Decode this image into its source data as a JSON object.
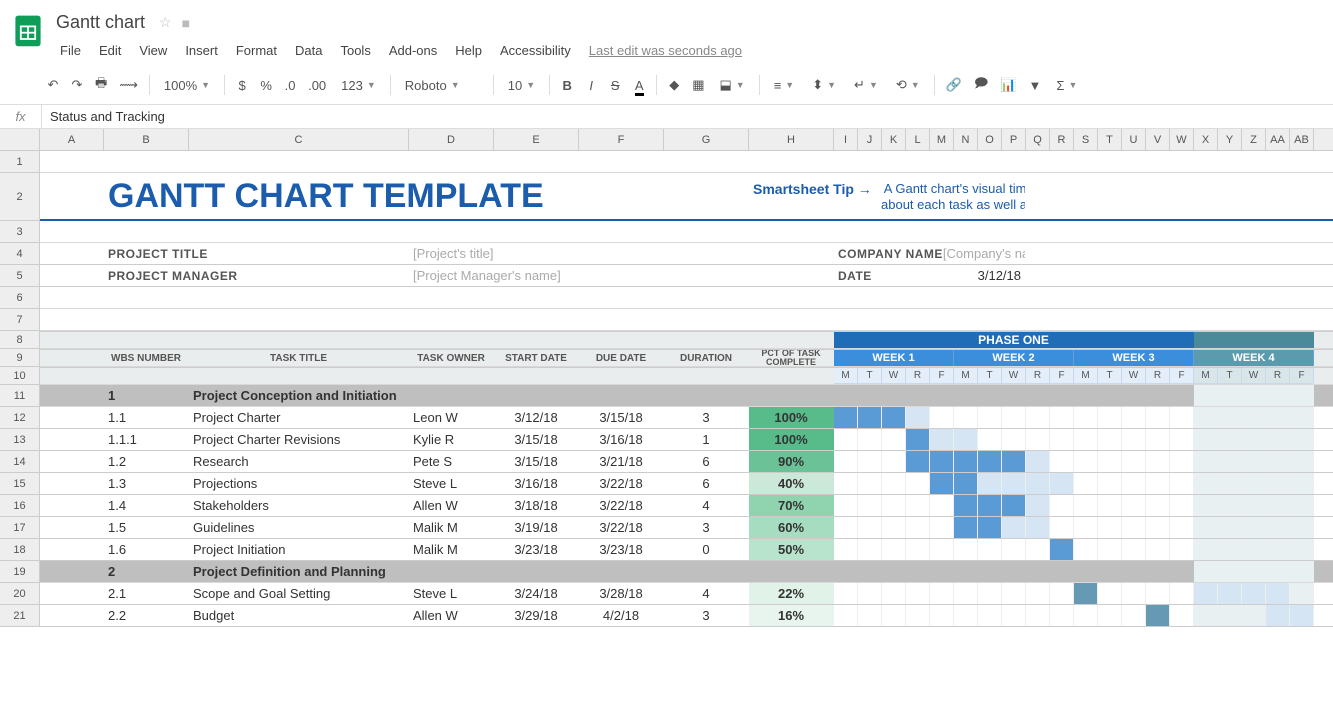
{
  "doc": {
    "title": "Gantt chart",
    "last_edit": "Last edit was seconds ago"
  },
  "menus": [
    "File",
    "Edit",
    "View",
    "Insert",
    "Format",
    "Data",
    "Tools",
    "Add-ons",
    "Help",
    "Accessibility"
  ],
  "toolbar": {
    "zoom": "100%",
    "font": "Roboto",
    "fontsize": "10",
    "numfmt": "123"
  },
  "formula": {
    "value": "Status and Tracking"
  },
  "columns": {
    "letters": [
      "A",
      "B",
      "C",
      "D",
      "E",
      "F",
      "G",
      "H",
      "I",
      "J",
      "K",
      "L",
      "M",
      "N",
      "O",
      "P",
      "Q",
      "R",
      "S",
      "T",
      "U",
      "V",
      "W",
      "X",
      "Y",
      "Z",
      "AA",
      "AB"
    ],
    "widths": [
      64,
      85,
      220,
      85,
      85,
      85,
      85,
      85,
      24,
      24,
      24,
      24,
      24,
      24,
      24,
      24,
      24,
      24,
      24,
      24,
      24,
      24,
      24,
      24,
      24,
      24,
      24,
      24
    ]
  },
  "rows": [
    "1",
    "2",
    "3",
    "4",
    "5",
    "6",
    "7",
    "8",
    "9",
    "10",
    "11",
    "12",
    "13",
    "14",
    "15",
    "16",
    "17",
    "18",
    "19",
    "20",
    "21"
  ],
  "content": {
    "title": "GANTT CHART TEMPLATE",
    "tip_label": "Smartsheet Tip →",
    "tip_text1": "A Gantt chart's visual timeline allows you to see",
    "tip_text2": "about each task as well as project dependencies",
    "fields": {
      "project_title_label": "PROJECT TITLE",
      "project_title_val": "[Project's title]",
      "project_manager_label": "PROJECT MANAGER",
      "project_manager_val": "[Project Manager's name]",
      "company_label": "COMPANY NAME",
      "company_val": "[Company's name]",
      "date_label": "DATE",
      "date_val": "3/12/18"
    },
    "headers": {
      "wbs": "WBS NUMBER",
      "title": "TASK TITLE",
      "owner": "TASK OWNER",
      "start": "START DATE",
      "due": "DUE DATE",
      "duration": "DURATION",
      "pct": "PCT OF TASK COMPLETE",
      "phase": "PHASE ONE",
      "weeks": [
        "WEEK 1",
        "WEEK 2",
        "WEEK 3",
        "WEEK 4"
      ],
      "days": [
        "M",
        "T",
        "W",
        "R",
        "F"
      ]
    },
    "sections": [
      {
        "num": "1",
        "title": "Project Conception and Initiation"
      },
      {
        "num": "2",
        "title": "Project Definition and Planning"
      }
    ],
    "tasks": [
      {
        "wbs": "1.1",
        "title": "Project Charter",
        "owner": "Leon W",
        "start": "3/12/18",
        "due": "3/15/18",
        "dur": "3",
        "pct": "100%",
        "pctcolor": "#57bb8a",
        "bars": [
          [
            0,
            3,
            "bar-blue"
          ],
          [
            3,
            1,
            "bar-light"
          ]
        ]
      },
      {
        "wbs": "1.1.1",
        "title": "Project Charter Revisions",
        "owner": "Kylie R",
        "start": "3/15/18",
        "due": "3/16/18",
        "dur": "1",
        "pct": "100%",
        "pctcolor": "#57bb8a",
        "bars": [
          [
            3,
            1,
            "bar-blue"
          ],
          [
            4,
            2,
            "bar-light"
          ]
        ]
      },
      {
        "wbs": "1.2",
        "title": "Research",
        "owner": "Pete S",
        "start": "3/15/18",
        "due": "3/21/18",
        "dur": "6",
        "pct": "90%",
        "pctcolor": "#6bc297",
        "bars": [
          [
            3,
            5,
            "bar-blue"
          ],
          [
            8,
            1,
            "bar-light"
          ]
        ]
      },
      {
        "wbs": "1.3",
        "title": "Projections",
        "owner": "Steve L",
        "start": "3/16/18",
        "due": "3/22/18",
        "dur": "6",
        "pct": "40%",
        "pctcolor": "#cce8d9",
        "bars": [
          [
            4,
            2,
            "bar-blue"
          ],
          [
            6,
            4,
            "bar-light"
          ]
        ]
      },
      {
        "wbs": "1.4",
        "title": "Stakeholders",
        "owner": "Allen W",
        "start": "3/18/18",
        "due": "3/22/18",
        "dur": "4",
        "pct": "70%",
        "pctcolor": "#8fd3af",
        "bars": [
          [
            5,
            3,
            "bar-blue"
          ],
          [
            8,
            1,
            "bar-light"
          ]
        ]
      },
      {
        "wbs": "1.5",
        "title": "Guidelines",
        "owner": "Malik M",
        "start": "3/19/18",
        "due": "3/22/18",
        "dur": "3",
        "pct": "60%",
        "pctcolor": "#a6dcc0",
        "bars": [
          [
            5,
            2,
            "bar-blue"
          ],
          [
            7,
            2,
            "bar-light"
          ]
        ]
      },
      {
        "wbs": "1.6",
        "title": "Project Initiation",
        "owner": "Malik M",
        "start": "3/23/18",
        "due": "3/23/18",
        "dur": "0",
        "pct": "50%",
        "pctcolor": "#b8e3cc",
        "bars": [
          [
            9,
            1,
            "bar-blue"
          ]
        ]
      },
      {
        "wbs": "2.1",
        "title": "Scope and Goal Setting",
        "owner": "Steve L",
        "start": "3/24/18",
        "due": "3/28/18",
        "dur": "4",
        "pct": "22%",
        "pctcolor": "#e1f2e9",
        "bars": [
          [
            10,
            1,
            "bar-steel"
          ],
          [
            15,
            4,
            "bar-light"
          ]
        ]
      },
      {
        "wbs": "2.2",
        "title": "Budget",
        "owner": "Allen W",
        "start": "3/29/18",
        "due": "4/2/18",
        "dur": "3",
        "pct": "16%",
        "pctcolor": "#e8f5ee",
        "bars": [
          [
            13,
            1,
            "bar-steel"
          ],
          [
            18,
            2,
            "bar-light"
          ]
        ]
      }
    ]
  }
}
